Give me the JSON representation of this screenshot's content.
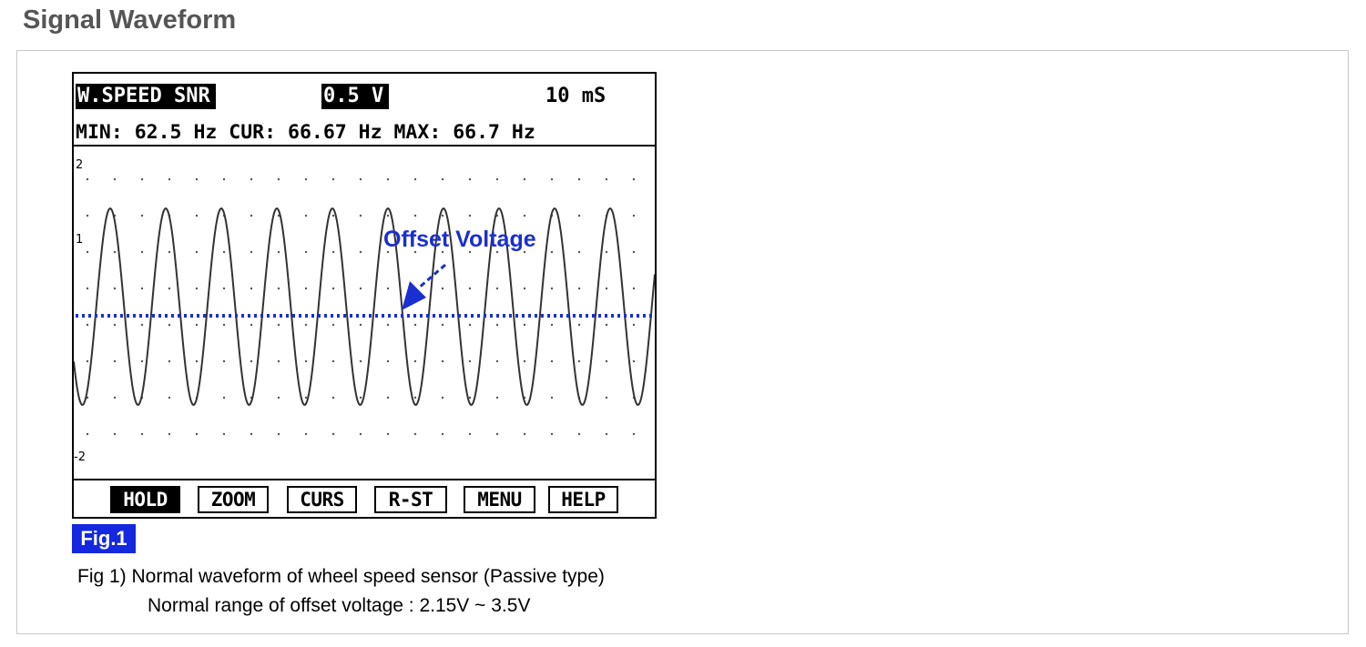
{
  "section_title": "Signal Waveform",
  "scope": {
    "channel_label": "W.SPEED SNR",
    "volt_div": "0.5 V",
    "time_div": "10 mS",
    "stats": "MIN: 62.5 Hz CUR: 66.67 Hz MAX: 66.7 Hz",
    "y_axis_labels": {
      "top": "2",
      "mid": "1",
      "bottom": "-2"
    },
    "annotation": "Offset Voltage",
    "softkeys": [
      {
        "label": "HOLD",
        "active": true
      },
      {
        "label": "ZOOM",
        "active": false
      },
      {
        "label": "CURS",
        "active": false
      },
      {
        "label": "R-ST",
        "active": false
      },
      {
        "label": "MENU",
        "active": false
      },
      {
        "label": "HELP",
        "active": false
      }
    ]
  },
  "figure_badge": "Fig.1",
  "caption": {
    "line1": "Fig 1) Normal waveform of wheel speed sensor (Passive type)",
    "line2": "Normal range of offset voltage : 2.15V ~ 3.5V"
  },
  "colors": {
    "accent_blue": "#1428e0",
    "annotation_blue": "#1a2fd0"
  }
}
